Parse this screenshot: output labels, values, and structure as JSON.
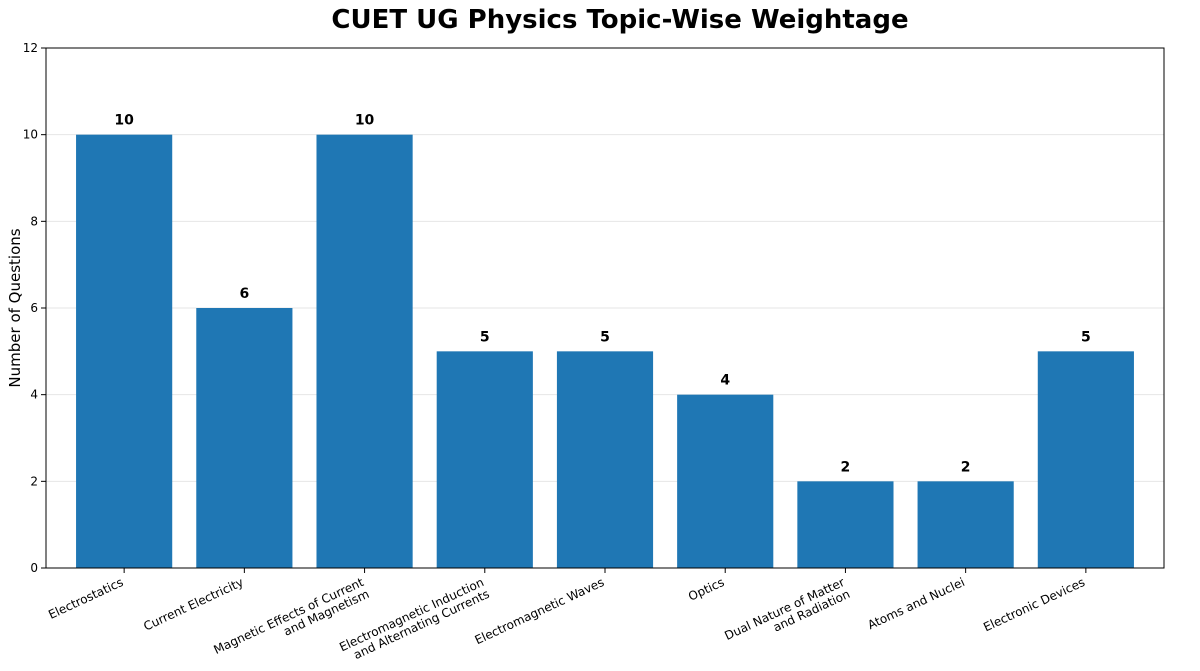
{
  "chart_data": {
    "type": "bar",
    "title": "CUET UG Physics Topic-Wise Weightage",
    "xlabel": "",
    "ylabel": "Number of Questions",
    "categories": [
      [
        "Electrostatics"
      ],
      [
        "Current Electricity"
      ],
      [
        "Magnetic Effects of Current",
        "and Magnetism"
      ],
      [
        "Electromagnetic Induction",
        "and Alternating Currents"
      ],
      [
        "Electromagnetic Waves"
      ],
      [
        "Optics"
      ],
      [
        "Dual Nature of Matter",
        "and Radiation"
      ],
      [
        "Atoms and Nuclei"
      ],
      [
        "Electronic Devices"
      ]
    ],
    "values": [
      10,
      6,
      10,
      5,
      5,
      4,
      2,
      2,
      5
    ],
    "ylim": [
      0,
      12
    ],
    "yticks": [
      0,
      2,
      4,
      6,
      8,
      10,
      12
    ],
    "grid": "y",
    "bar_color": "#1f77b4"
  }
}
